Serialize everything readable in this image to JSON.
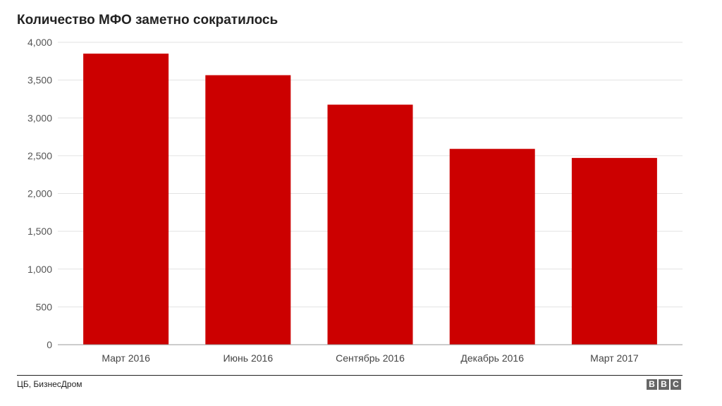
{
  "chart_data": {
    "type": "bar",
    "title": "Количество МФО заметно сократилось",
    "categories": [
      "Март 2016",
      "Июнь 2016",
      "Сентябрь 2016",
      "Декабрь 2016",
      "Март 2017"
    ],
    "values": [
      3850,
      3565,
      3175,
      2590,
      2470
    ],
    "ylim": [
      0,
      4000
    ],
    "yticks": [
      "0",
      "500",
      "1,000",
      "1,500",
      "2,000",
      "2,500",
      "3,000",
      "3,500",
      "4,000"
    ],
    "ytick_values": [
      0,
      500,
      1000,
      1500,
      2000,
      2500,
      3000,
      3500,
      4000
    ],
    "bar_color": "#cc0000",
    "grid": true,
    "legend": false
  },
  "footer": {
    "source": "ЦБ, БизнесДром",
    "logo_letters": [
      "B",
      "B",
      "C"
    ]
  }
}
